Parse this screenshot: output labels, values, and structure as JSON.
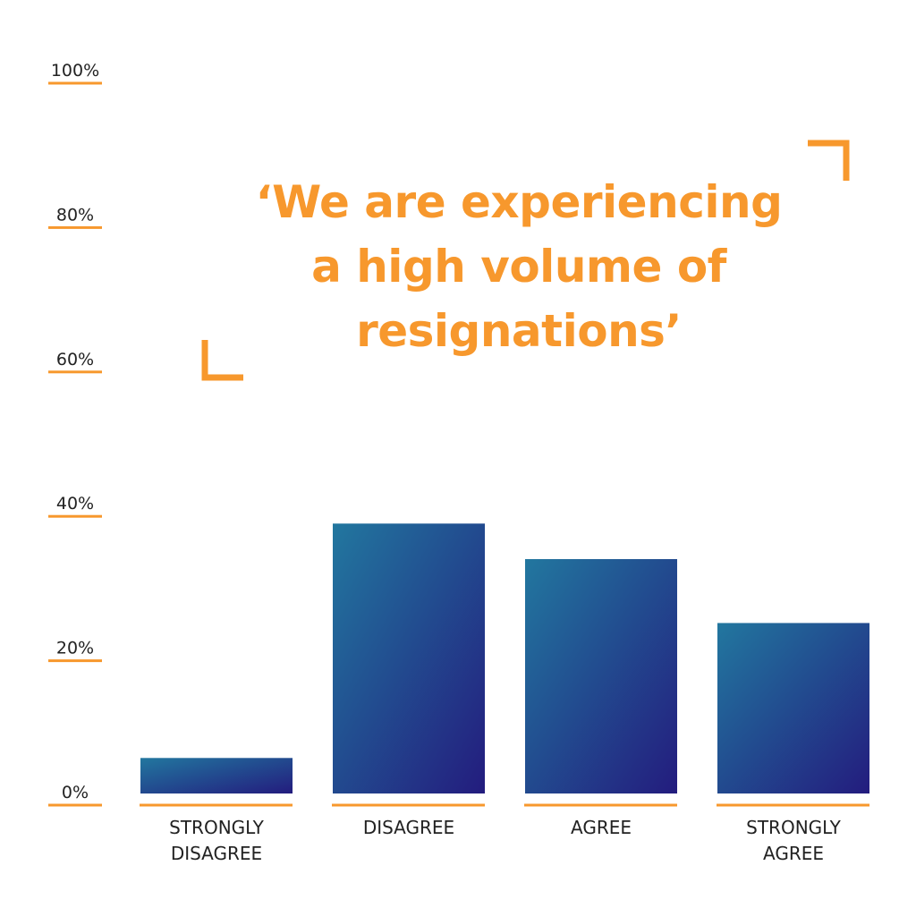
{
  "chart_data": {
    "type": "bar",
    "title": "‘We are experiencing a high volume of resignations’",
    "title_lines": [
      "‘We are experiencing",
      "a high volume of",
      "resignations’"
    ],
    "categories": [
      [
        "STRONGLY",
        "DISAGREE"
      ],
      [
        "DISAGREE"
      ],
      [
        "AGREE"
      ],
      [
        "STRONGLY",
        "AGREE"
      ]
    ],
    "values": [
      5,
      38,
      33,
      24
    ],
    "yticks": [
      "0%",
      "20%",
      "40%",
      "60%",
      "80%",
      "100%"
    ],
    "ylim": [
      0,
      100
    ],
    "xlabel": "",
    "ylabel": "",
    "grid": false,
    "unit": "%"
  },
  "colors": {
    "accent": "#F7982D",
    "bar_start": "#22779F",
    "bar_end": "#231C7E",
    "text": "#222222"
  }
}
